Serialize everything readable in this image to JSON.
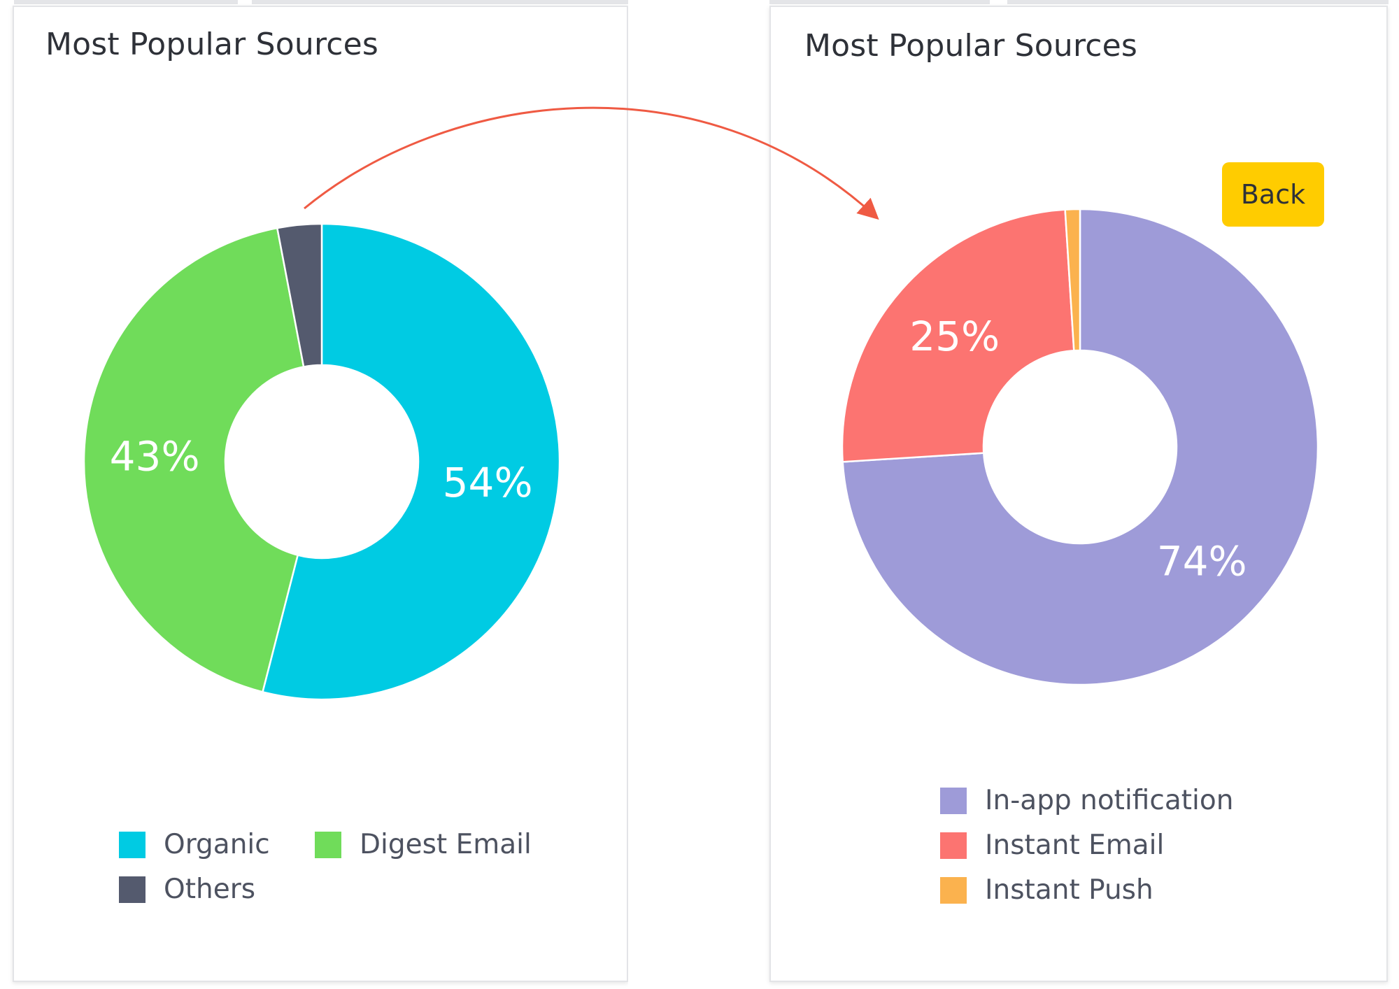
{
  "chart_data": [
    {
      "type": "pie",
      "variant": "donut",
      "title": "Most Popular Sources",
      "categories": [
        "Organic",
        "Digest Email",
        "Others"
      ],
      "values": [
        54,
        43,
        3
      ],
      "display_labels": [
        "54%",
        "43%",
        ""
      ],
      "colors": [
        "#00cbe3",
        "#70dc5a",
        "#545a6e"
      ],
      "legend": {
        "position": "bottom",
        "entries": [
          "Organic",
          "Digest Email",
          "Others"
        ]
      }
    },
    {
      "type": "pie",
      "variant": "donut",
      "title": "Most Popular Sources",
      "categories": [
        "In-app notification",
        "Instant Email",
        "Instant Push"
      ],
      "values": [
        74,
        25,
        1
      ],
      "display_labels": [
        "74%",
        "25%",
        ""
      ],
      "colors": [
        "#9e9bd8",
        "#fc7471",
        "#fbb24e"
      ],
      "legend": {
        "position": "bottom",
        "entries": [
          "In-app notification",
          "Instant Email",
          "Instant Push"
        ]
      }
    }
  ],
  "back_button": {
    "label": "Back",
    "color": "#ffcc00"
  },
  "arrow_color": "#ef5a43"
}
